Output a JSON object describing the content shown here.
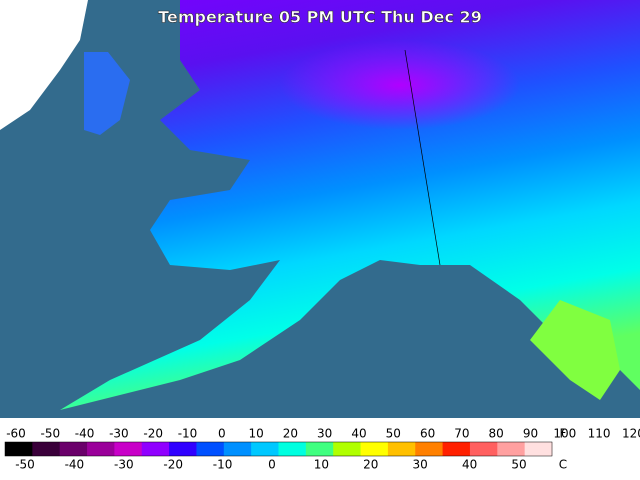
{
  "title": "Temperature 05 PM UTC Thu Dec 29",
  "legend": {
    "f_labels": [
      -60,
      -50,
      -40,
      -30,
      -20,
      -10,
      0,
      10,
      20,
      30,
      40,
      50,
      60,
      70,
      80,
      90,
      100,
      110,
      120
    ],
    "f_unit": "F",
    "c_labels": [
      -50,
      -40,
      -30,
      -20,
      -10,
      0,
      10,
      20,
      30,
      40,
      50
    ],
    "c_unit": "C",
    "colors": [
      "#000000",
      "#3a003a",
      "#6a006a",
      "#9a009a",
      "#c800c8",
      "#9000ff",
      "#3000ff",
      "#0050ff",
      "#0090ff",
      "#00c8ff",
      "#00ffe0",
      "#40ff80",
      "#b0ff00",
      "#ffff00",
      "#ffc000",
      "#ff8000",
      "#ff2000",
      "#ff6060",
      "#ffa0a0",
      "#ffe0e0"
    ]
  }
}
